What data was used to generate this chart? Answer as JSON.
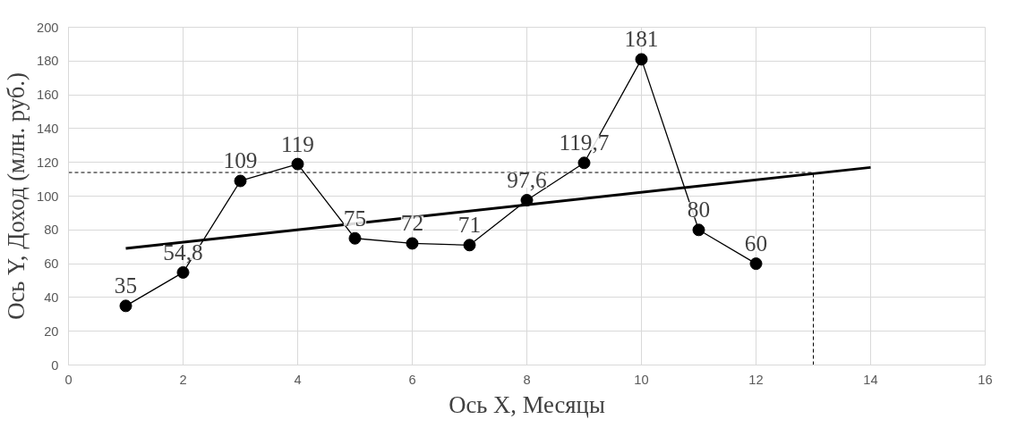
{
  "chart_data": {
    "type": "line",
    "xlabel": "Ось X, Месяцы",
    "ylabel": "Ось Y, Доход (млн. руб.)",
    "x": [
      1,
      2,
      3,
      4,
      5,
      6,
      7,
      8,
      9,
      10,
      11,
      12
    ],
    "series": [
      {
        "color": "#000000",
        "marker": "circle",
        "values": [
          35,
          54.8,
          109,
          119,
          75,
          72,
          71,
          97.6,
          119.7,
          181,
          80,
          60
        ],
        "value_labels": [
          "35",
          "54,8",
          "109",
          "119",
          "75",
          "72",
          "71",
          "97,6",
          "119,7",
          "181",
          "80",
          "60"
        ]
      },
      {
        "color": "#000000",
        "marker": "none",
        "x": [
          1,
          14
        ],
        "values": [
          69,
          117
        ]
      }
    ],
    "ref_lines": [
      {
        "axis": "y",
        "value": 114,
        "line_style": "dashed",
        "color": "#000000"
      },
      {
        "axis": "x",
        "value": 13,
        "line_style": "dashed",
        "color": "#000000"
      }
    ],
    "xlim": [
      0,
      16
    ],
    "xticks": [
      0,
      2,
      4,
      6,
      8,
      10,
      12,
      14,
      16
    ],
    "ylim": [
      0,
      200
    ],
    "yticks": [
      0,
      20,
      40,
      60,
      80,
      100,
      120,
      140,
      160,
      180,
      200
    ],
    "grid": true
  }
}
